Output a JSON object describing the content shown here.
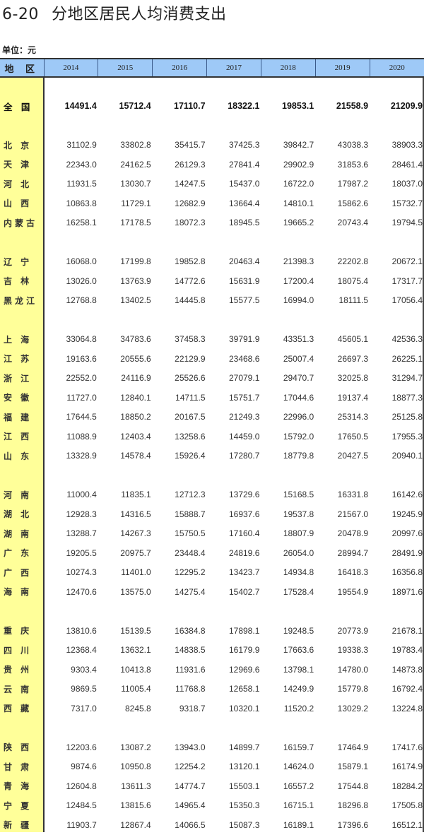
{
  "title": {
    "number": "6-20",
    "text": "分地区居民人均消费支出"
  },
  "unit": "单位：元",
  "header": {
    "region": "地 区",
    "years": [
      "2014",
      "2015",
      "2016",
      "2017",
      "2018",
      "2019",
      "2020"
    ]
  },
  "colors": {
    "header_bg": "#9ec9f7",
    "region_col_bg": "#ffff99"
  },
  "total": {
    "name": "全 国",
    "values": [
      "14491.4",
      "15712.4",
      "17110.7",
      "18322.1",
      "19853.1",
      "21558.9",
      "21209.9"
    ]
  },
  "groups": [
    [
      {
        "name": "北 京",
        "values": [
          "31102.9",
          "33802.8",
          "35415.7",
          "37425.3",
          "39842.7",
          "43038.3",
          "38903.3"
        ]
      },
      {
        "name": "天 津",
        "values": [
          "22343.0",
          "24162.5",
          "26129.3",
          "27841.4",
          "29902.9",
          "31853.6",
          "28461.4"
        ]
      },
      {
        "name": "河 北",
        "values": [
          "11931.5",
          "13030.7",
          "14247.5",
          "15437.0",
          "16722.0",
          "17987.2",
          "18037.0"
        ]
      },
      {
        "name": "山 西",
        "values": [
          "10863.8",
          "11729.1",
          "12682.9",
          "13664.4",
          "14810.1",
          "15862.6",
          "15732.7"
        ]
      },
      {
        "name": "内蒙古",
        "values": [
          "16258.1",
          "17178.5",
          "18072.3",
          "18945.5",
          "19665.2",
          "20743.4",
          "19794.5"
        ]
      }
    ],
    [
      {
        "name": "辽 宁",
        "values": [
          "16068.0",
          "17199.8",
          "19852.8",
          "20463.4",
          "21398.3",
          "22202.8",
          "20672.1"
        ]
      },
      {
        "name": "吉 林",
        "values": [
          "13026.0",
          "13763.9",
          "14772.6",
          "15631.9",
          "17200.4",
          "18075.4",
          "17317.7"
        ]
      },
      {
        "name": "黑龙江",
        "values": [
          "12768.8",
          "13402.5",
          "14445.8",
          "15577.5",
          "16994.0",
          "18111.5",
          "17056.4"
        ]
      }
    ],
    [
      {
        "name": "上 海",
        "values": [
          "33064.8",
          "34783.6",
          "37458.3",
          "39791.9",
          "43351.3",
          "45605.1",
          "42536.3"
        ]
      },
      {
        "name": "江 苏",
        "values": [
          "19163.6",
          "20555.6",
          "22129.9",
          "23468.6",
          "25007.4",
          "26697.3",
          "26225.1"
        ]
      },
      {
        "name": "浙 江",
        "values": [
          "22552.0",
          "24116.9",
          "25526.6",
          "27079.1",
          "29470.7",
          "32025.8",
          "31294.7"
        ]
      },
      {
        "name": "安 徽",
        "values": [
          "11727.0",
          "12840.1",
          "14711.5",
          "15751.7",
          "17044.6",
          "19137.4",
          "18877.3"
        ]
      },
      {
        "name": "福 建",
        "values": [
          "17644.5",
          "18850.2",
          "20167.5",
          "21249.3",
          "22996.0",
          "25314.3",
          "25125.8"
        ]
      },
      {
        "name": "江 西",
        "values": [
          "11088.9",
          "12403.4",
          "13258.6",
          "14459.0",
          "15792.0",
          "17650.5",
          "17955.3"
        ]
      },
      {
        "name": "山 东",
        "values": [
          "13328.9",
          "14578.4",
          "15926.4",
          "17280.7",
          "18779.8",
          "20427.5",
          "20940.1"
        ]
      }
    ],
    [
      {
        "name": "河 南",
        "values": [
          "11000.4",
          "11835.1",
          "12712.3",
          "13729.6",
          "15168.5",
          "16331.8",
          "16142.6"
        ]
      },
      {
        "name": "湖 北",
        "values": [
          "12928.3",
          "14316.5",
          "15888.7",
          "16937.6",
          "19537.8",
          "21567.0",
          "19245.9"
        ]
      },
      {
        "name": "湖 南",
        "values": [
          "13288.7",
          "14267.3",
          "15750.5",
          "17160.4",
          "18807.9",
          "20478.9",
          "20997.6"
        ]
      },
      {
        "name": "广 东",
        "values": [
          "19205.5",
          "20975.7",
          "23448.4",
          "24819.6",
          "26054.0",
          "28994.7",
          "28491.9"
        ]
      },
      {
        "name": "广 西",
        "values": [
          "10274.3",
          "11401.0",
          "12295.2",
          "13423.7",
          "14934.8",
          "16418.3",
          "16356.8"
        ]
      },
      {
        "name": "海 南",
        "values": [
          "12470.6",
          "13575.0",
          "14275.4",
          "15402.7",
          "17528.4",
          "19554.9",
          "18971.6"
        ]
      }
    ],
    [
      {
        "name": "重 庆",
        "values": [
          "13810.6",
          "15139.5",
          "16384.8",
          "17898.1",
          "19248.5",
          "20773.9",
          "21678.1"
        ]
      },
      {
        "name": "四 川",
        "values": [
          "12368.4",
          "13632.1",
          "14838.5",
          "16179.9",
          "17663.6",
          "19338.3",
          "19783.4"
        ]
      },
      {
        "name": "贵 州",
        "values": [
          "9303.4",
          "10413.8",
          "11931.6",
          "12969.6",
          "13798.1",
          "14780.0",
          "14873.8"
        ]
      },
      {
        "name": "云 南",
        "values": [
          "9869.5",
          "11005.4",
          "11768.8",
          "12658.1",
          "14249.9",
          "15779.8",
          "16792.4"
        ]
      },
      {
        "name": "西 藏",
        "values": [
          "7317.0",
          "8245.8",
          "9318.7",
          "10320.1",
          "11520.2",
          "13029.2",
          "13224.8"
        ]
      }
    ],
    [
      {
        "name": "陕 西",
        "values": [
          "12203.6",
          "13087.2",
          "13943.0",
          "14899.7",
          "16159.7",
          "17464.9",
          "17417.6"
        ]
      },
      {
        "name": "甘 肃",
        "values": [
          "9874.6",
          "10950.8",
          "12254.2",
          "13120.1",
          "14624.0",
          "15879.1",
          "16174.9"
        ]
      },
      {
        "name": "青 海",
        "values": [
          "12604.8",
          "13611.3",
          "14774.7",
          "15503.1",
          "16557.2",
          "17544.8",
          "18284.2"
        ]
      },
      {
        "name": "宁 夏",
        "values": [
          "12484.5",
          "13815.6",
          "14965.4",
          "15350.3",
          "16715.1",
          "18296.8",
          "17505.8"
        ]
      },
      {
        "name": "新 疆",
        "values": [
          "11903.7",
          "12867.4",
          "14066.5",
          "15087.3",
          "16189.1",
          "17396.6",
          "16512.1"
        ]
      }
    ]
  ]
}
